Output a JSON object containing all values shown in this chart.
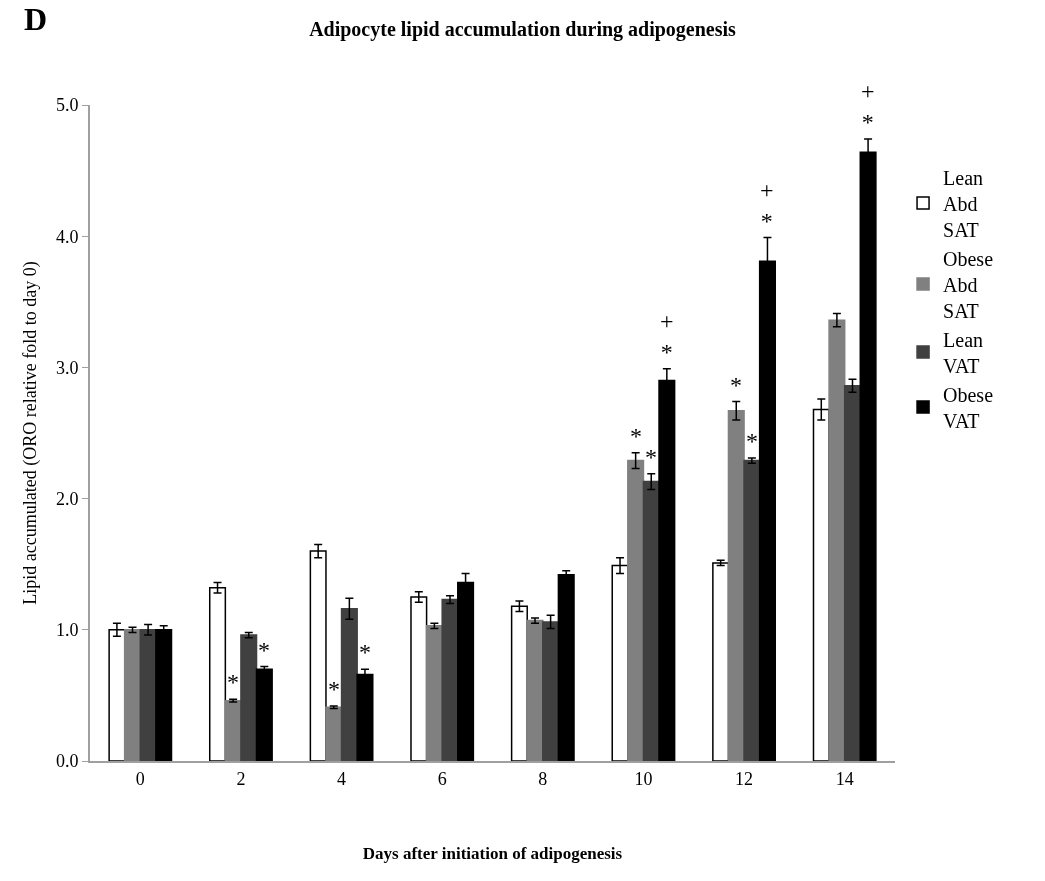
{
  "chart_data": {
    "type": "bar",
    "title": "Adipocyte lipid accumulation during adipogenesis",
    "xlabel": "Days after initiation of adipogenesis",
    "ylabel": "Lipid accumulated (ORO relative fold to day 0)",
    "annotations": [
      "D"
    ],
    "categories": [
      "0",
      "2",
      "4",
      "6",
      "8",
      "10",
      "12",
      "14"
    ],
    "series": [
      {
        "name": "Lean\nAbd\nSAT",
        "color": "#ffffff",
        "values": [
          1.0,
          1.32,
          1.6,
          1.25,
          1.18,
          1.49,
          1.51,
          2.68
        ],
        "errors": [
          0.05,
          0.04,
          0.05,
          0.04,
          0.04,
          0.06,
          0.02,
          0.08
        ]
      },
      {
        "name": "Obese\nAbd\nSAT",
        "color": "#808080",
        "values": [
          1.0,
          0.46,
          0.41,
          1.03,
          1.07,
          2.29,
          2.67,
          3.36
        ],
        "errors": [
          0.02,
          0.01,
          0.01,
          0.02,
          0.02,
          0.06,
          0.07,
          0.05
        ],
        "value_labels": [
          null,
          "*",
          "*",
          null,
          null,
          "*",
          "*",
          null
        ]
      },
      {
        "name": "Lean\nVAT",
        "color": "#404040",
        "values": [
          1.0,
          0.96,
          1.16,
          1.23,
          1.06,
          2.13,
          2.29,
          2.86
        ],
        "errors": [
          0.04,
          0.02,
          0.08,
          0.03,
          0.05,
          0.06,
          0.02,
          0.05
        ],
        "value_labels": [
          null,
          null,
          null,
          null,
          null,
          "*",
          "*",
          null
        ]
      },
      {
        "name": "Obese\nVAT",
        "color": "#000000",
        "values": [
          1.0,
          0.7,
          0.66,
          1.36,
          1.42,
          2.9,
          3.81,
          4.64
        ],
        "errors": [
          0.03,
          0.02,
          0.04,
          0.07,
          0.03,
          0.09,
          0.18,
          0.1
        ],
        "value_labels": [
          null,
          "*",
          "*",
          null,
          null,
          "+\n*",
          "+\n*",
          "+\n*"
        ]
      }
    ],
    "ylim": [
      0,
      5
    ],
    "yticks": [
      {
        "value": 0,
        "label": "0.0"
      },
      {
        "value": 1,
        "label": "1.0"
      },
      {
        "value": 2,
        "label": "2.0"
      },
      {
        "value": 3,
        "label": "3.0"
      },
      {
        "value": 4,
        "label": "4.0"
      },
      {
        "value": 5,
        "label": "5.0"
      }
    ],
    "legend": "right"
  }
}
